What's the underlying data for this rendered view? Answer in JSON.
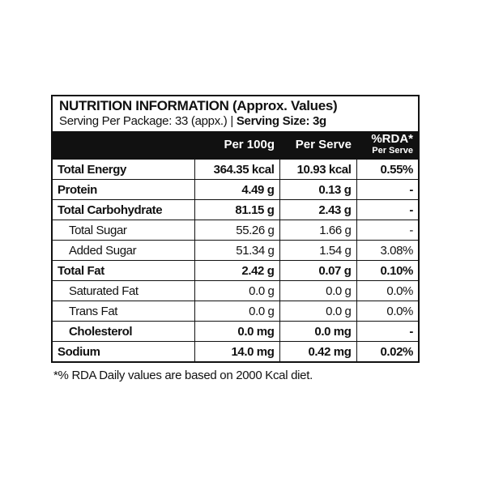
{
  "header": {
    "title": "NUTRITION INFORMATION (Approx. Values)",
    "serving_per_package": "Serving Per Package: 33 (appx.)",
    "separator": "|",
    "serving_size": "Serving Size: 3g"
  },
  "table": {
    "columns": [
      "Per 100g",
      "Per Serve",
      "%RDA*"
    ],
    "rda_subheader": "Per Serve",
    "rows": [
      {
        "cells": [
          "Total Energy",
          "364.35 kcal",
          "10.93 kcal",
          "0.55%"
        ],
        "bold": true,
        "indent": false
      },
      {
        "cells": [
          "Protein",
          "4.49 g",
          "0.13 g",
          "-"
        ],
        "bold": true,
        "indent": false
      },
      {
        "cells": [
          "Total Carbohydrate",
          "81.15 g",
          "2.43 g",
          "-"
        ],
        "bold": true,
        "indent": false
      },
      {
        "cells": [
          "Total Sugar",
          "55.26 g",
          "1.66 g",
          "-"
        ],
        "bold": false,
        "indent": true
      },
      {
        "cells": [
          "Added Sugar",
          "51.34 g",
          "1.54 g",
          "3.08%"
        ],
        "bold": false,
        "indent": true
      },
      {
        "cells": [
          "Total Fat",
          "2.42 g",
          "0.07 g",
          "0.10%"
        ],
        "bold": true,
        "indent": false
      },
      {
        "cells": [
          "Saturated Fat",
          "0.0 g",
          "0.0 g",
          "0.0%"
        ],
        "bold": false,
        "indent": true
      },
      {
        "cells": [
          "Trans Fat",
          "0.0 g",
          "0.0 g",
          "0.0%"
        ],
        "bold": false,
        "indent": true
      },
      {
        "cells": [
          "Cholesterol",
          "0.0 mg",
          "0.0 mg",
          "-"
        ],
        "bold": true,
        "indent": true
      },
      {
        "cells": [
          "Sodium",
          "14.0 mg",
          "0.42 mg",
          "0.02%"
        ],
        "bold": true,
        "indent": false
      }
    ]
  },
  "footnote": "*% RDA Daily values are based on 2000 Kcal diet."
}
